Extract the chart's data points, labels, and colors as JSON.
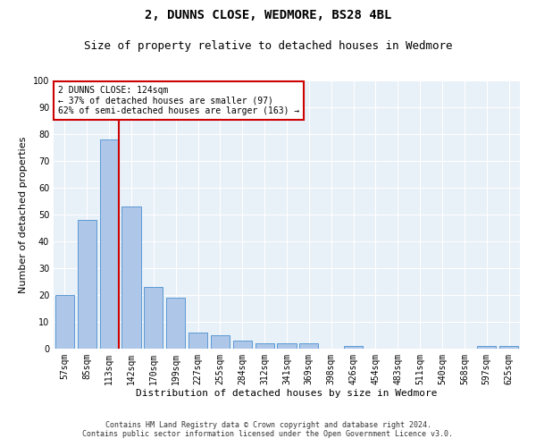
{
  "title": "2, DUNNS CLOSE, WEDMORE, BS28 4BL",
  "subtitle": "Size of property relative to detached houses in Wedmore",
  "xlabel": "Distribution of detached houses by size in Wedmore",
  "ylabel": "Number of detached properties",
  "categories": [
    "57sqm",
    "85sqm",
    "113sqm",
    "142sqm",
    "170sqm",
    "199sqm",
    "227sqm",
    "255sqm",
    "284sqm",
    "312sqm",
    "341sqm",
    "369sqm",
    "398sqm",
    "426sqm",
    "454sqm",
    "483sqm",
    "511sqm",
    "540sqm",
    "568sqm",
    "597sqm",
    "625sqm"
  ],
  "values": [
    20,
    48,
    78,
    53,
    23,
    19,
    6,
    5,
    3,
    2,
    2,
    2,
    0,
    1,
    0,
    0,
    0,
    0,
    0,
    1,
    1
  ],
  "bar_color": "#aec6e8",
  "bar_edge_color": "#5b9bd5",
  "property_line_index": 2,
  "property_line_color": "#cc0000",
  "annotation_text": "2 DUNNS CLOSE: 124sqm\n← 37% of detached houses are smaller (97)\n62% of semi-detached houses are larger (163) →",
  "annotation_box_color": "#ffffff",
  "annotation_box_edge": "#cc0000",
  "ylim": [
    0,
    100
  ],
  "yticks": [
    0,
    10,
    20,
    30,
    40,
    50,
    60,
    70,
    80,
    90,
    100
  ],
  "footer_line1": "Contains HM Land Registry data © Crown copyright and database right 2024.",
  "footer_line2": "Contains public sector information licensed under the Open Government Licence v3.0.",
  "bg_color": "#e8f0f8",
  "fig_bg_color": "#ffffff",
  "title_fontsize": 10,
  "subtitle_fontsize": 9,
  "ylabel_fontsize": 8,
  "xlabel_fontsize": 8,
  "tick_fontsize": 7,
  "annotation_fontsize": 7,
  "footer_fontsize": 6
}
